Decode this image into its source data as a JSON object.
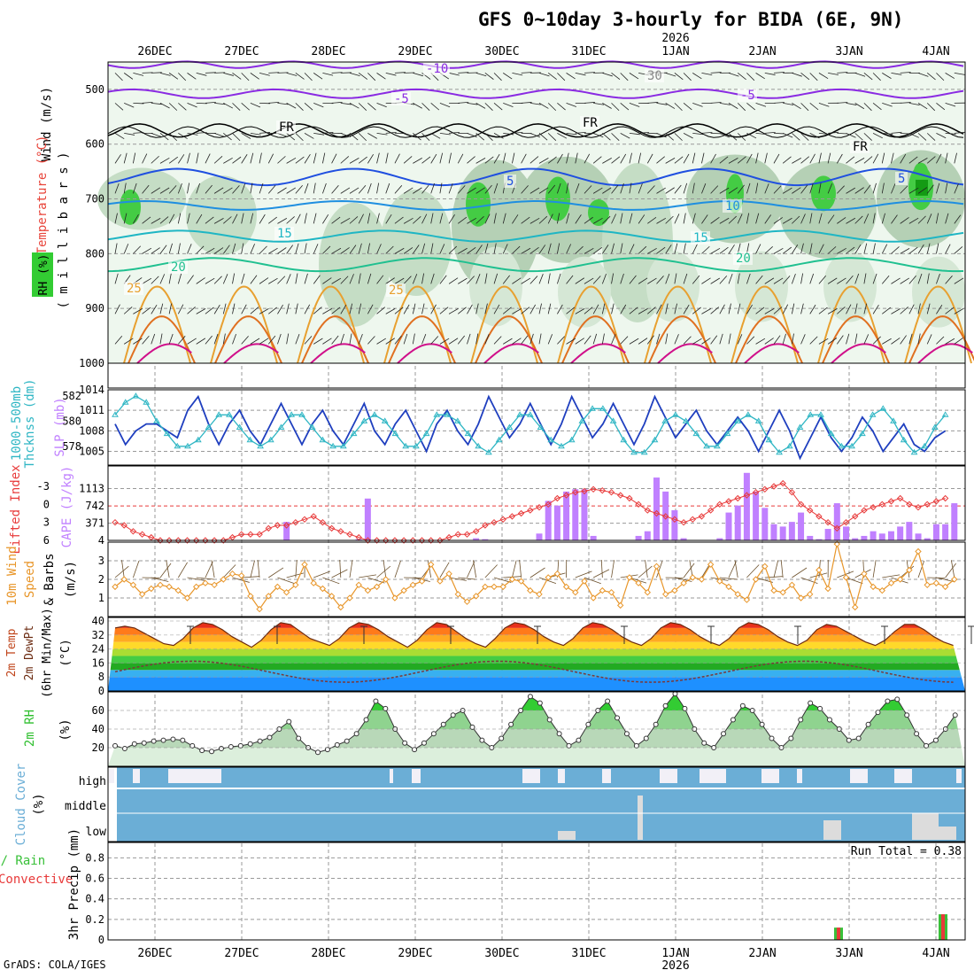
{
  "title": "GFS 0~10day 3-hourly for BIDA (6E, 9N)",
  "credit": "GrADS: COLA/IGES",
  "year_label": "2026",
  "dates": [
    "26DEC",
    "27DEC",
    "28DEC",
    "29DEC",
    "30DEC",
    "31DEC",
    "1JAN",
    "2JAN",
    "3JAN",
    "4JAN"
  ],
  "colors": {
    "rh": "#33cc33",
    "temp_c": "#e8443a",
    "wind": "#000000",
    "slp": "#1f3fbf",
    "thick": "#2fb6c4",
    "li": "#e83a3a",
    "cape": "#c080ff",
    "wind10": "#e8962a",
    "rh2m": "#2fbf2f",
    "cloud": "#6baed6",
    "precip_total": "#39c039",
    "precip_conv": "#e83a3a"
  },
  "panels": {
    "upper": {
      "ylabel_rh": "RH (%)",
      "ylabel_temp": "Temperature (°C)",
      "ylabel_wind": "Wind (m/s)",
      "ylabel_p": "( m i l l i b a r s )",
      "y_ticks": [
        "500",
        "600",
        "700",
        "800",
        "900",
        "1000"
      ],
      "contour_labels": [
        "-10",
        "-5",
        "-5",
        "FR",
        "FR",
        "FR",
        "5",
        "5",
        "10",
        "15",
        "15",
        "20",
        "20",
        "25",
        "25",
        "30"
      ]
    },
    "slp": {
      "ylabel_a": "1000-500mb",
      "ylabel_b": "Thcknss (dm)",
      "ylabel_c": "SLP (mb)",
      "left_ticks": [
        "582",
        "580",
        "578"
      ],
      "right_ticks": [
        "1014",
        "1011",
        "1008",
        "1005"
      ]
    },
    "cape": {
      "ylabel_a": "Lifted Index",
      "ylabel_b": "CAPE (J/kg)",
      "left_ticks": [
        "-3",
        "0",
        "3",
        "6"
      ],
      "right_ticks": [
        "1113",
        "742",
        "371",
        "4"
      ]
    },
    "wind10": {
      "ylabel_a": "10m Wind",
      "ylabel_b": "Speed",
      "ylabel_c": "& Barbs",
      "ylabel_d": "(m/s)",
      "y_ticks": [
        "3",
        "2",
        "1"
      ]
    },
    "temp": {
      "ylabel_a": "2m Temp",
      "ylabel_b": "2m DewPt",
      "ylabel_c": "(6hr Min/Max)",
      "ylabel_d": "(°C)",
      "y_ticks": [
        "40",
        "32",
        "24",
        "16",
        "8",
        "0"
      ]
    },
    "rh2m": {
      "ylabel_a": "2m RH",
      "ylabel_b": "(%)",
      "y_ticks": [
        "60",
        "40",
        "20"
      ]
    },
    "cloud": {
      "ylabel_a": "Cloud Cover",
      "ylabel_b": "(%)",
      "levels": [
        "high",
        "middle",
        "low"
      ]
    },
    "precip": {
      "ylabel_a": "Total / Rain",
      "ylabel_b": "Convective",
      "ylabel_c": "3hr Precip (mm)",
      "y_ticks": [
        "0.8",
        "0.6",
        "0.4",
        "0.2",
        "0"
      ],
      "run_total": "Run Total = 0.38"
    }
  },
  "chart_data": [
    {
      "type": "line",
      "title": "1000-500mb Thickness (dm) / SLP (mb)",
      "series": [
        {
          "name": "SLP (mb)",
          "axis": "right",
          "ylim": [
            1003,
            1014
          ],
          "values": [
            1009,
            1006,
            1008,
            1009,
            1009,
            1008,
            1007,
            1011,
            1013,
            1009,
            1006,
            1009,
            1011,
            1008,
            1006,
            1009,
            1012,
            1009,
            1006,
            1009,
            1011,
            1008,
            1006,
            1009,
            1012,
            1008,
            1006,
            1009,
            1011,
            1008,
            1005,
            1009,
            1011,
            1008,
            1006,
            1009,
            1013,
            1010,
            1007,
            1009,
            1012,
            1009,
            1006,
            1009,
            1013,
            1010,
            1007,
            1009,
            1012,
            1009,
            1006,
            1009,
            1013,
            1010,
            1007,
            1009,
            1011,
            1008,
            1006,
            1008,
            1010,
            1008,
            1005,
            1008,
            1011,
            1008,
            1004,
            1007,
            1010,
            1007,
            1005,
            1007,
            1010,
            1008,
            1005,
            1007,
            1009,
            1006,
            1005,
            1007,
            1008
          ]
        },
        {
          "name": "1000-500mb Thickness (dm)",
          "axis": "left",
          "ylim": [
            576.5,
            582.5
          ],
          "values": [
            580.5,
            581.5,
            582,
            581.5,
            580,
            579,
            578,
            578,
            578.5,
            579.5,
            580.5,
            580.5,
            579.5,
            578.5,
            578,
            578.5,
            579.5,
            580.5,
            580.5,
            579.5,
            578.5,
            578,
            578,
            579,
            580,
            580.5,
            580,
            579,
            578,
            578,
            579,
            580.5,
            580.5,
            580,
            579,
            578,
            577.5,
            578.5,
            579.5,
            580.5,
            580.5,
            579.5,
            578.5,
            578,
            578.5,
            580,
            581,
            581,
            580,
            578.5,
            577.5,
            577.5,
            578.5,
            580,
            580.5,
            580,
            579,
            578,
            578,
            579,
            580,
            580.5,
            580,
            578.5,
            577.5,
            578,
            579.5,
            580.5,
            580.5,
            579,
            578,
            578,
            579,
            580.5,
            581,
            580,
            578.5,
            577.5,
            578,
            579.5,
            580.5
          ]
        }
      ]
    },
    {
      "type": "bar",
      "title": "Lifted Index / CAPE (J/kg)",
      "cape_ylim": [
        4,
        1484
      ],
      "cape_values": [
        0,
        0,
        0,
        0,
        0,
        0,
        0,
        0,
        0,
        0,
        0,
        0,
        0,
        0,
        0,
        0,
        0,
        0,
        0,
        0,
        0,
        0,
        0,
        0,
        0,
        0,
        0,
        0,
        0,
        0,
        0,
        0,
        0,
        0,
        0,
        0,
        0,
        0,
        0,
        0,
        0,
        0,
        0,
        0,
        0,
        0,
        0,
        0,
        0,
        0,
        0,
        0,
        0,
        0,
        0,
        0,
        0,
        0,
        0,
        0,
        0,
        0,
        0,
        0,
        0,
        0,
        0,
        0,
        0,
        0,
        0,
        0,
        0,
        0,
        0,
        0,
        0,
        0,
        0,
        0,
        0
      ],
      "cape_bars": [
        [
          19,
          400
        ],
        [
          27,
          30
        ],
        [
          28,
          900
        ],
        [
          40,
          50
        ],
        [
          41,
          30
        ],
        [
          47,
          150
        ],
        [
          48,
          850
        ],
        [
          49,
          750
        ],
        [
          50,
          1050
        ],
        [
          51,
          1100
        ],
        [
          52,
          1100
        ],
        [
          53,
          100
        ],
        [
          58,
          100
        ],
        [
          59,
          200
        ],
        [
          60,
          1350
        ],
        [
          61,
          1050
        ],
        [
          62,
          650
        ],
        [
          63,
          50
        ],
        [
          67,
          50
        ],
        [
          68,
          600
        ],
        [
          69,
          750
        ],
        [
          70,
          1450
        ],
        [
          71,
          1050
        ],
        [
          72,
          700
        ],
        [
          73,
          350
        ],
        [
          74,
          300
        ],
        [
          75,
          400
        ],
        [
          76,
          600
        ],
        [
          77,
          100
        ],
        [
          78,
          30
        ],
        [
          79,
          250
        ],
        [
          80,
          800
        ],
        [
          81,
          300
        ],
        [
          82,
          50
        ],
        [
          83,
          100
        ],
        [
          84,
          200
        ],
        [
          85,
          150
        ],
        [
          86,
          200
        ],
        [
          87,
          300
        ],
        [
          88,
          400
        ],
        [
          89,
          150
        ],
        [
          90,
          50
        ],
        [
          91,
          350
        ],
        [
          92,
          350
        ],
        [
          93,
          800
        ]
      ],
      "li_ylim": [
        6,
        -5.5
      ],
      "li_values": [
        3,
        3.5,
        4.5,
        5,
        5.5,
        6,
        6,
        6,
        6,
        6,
        6,
        6,
        6,
        5.5,
        5,
        5,
        5,
        4,
        3.5,
        3.5,
        3,
        2.5,
        2,
        3,
        4,
        4.5,
        5,
        5.5,
        6,
        6,
        6,
        6,
        6,
        6,
        6,
        6,
        6,
        5.5,
        5,
        5,
        4.5,
        3.5,
        3,
        2.5,
        2,
        1.5,
        1,
        0.5,
        0,
        -1,
        -1.5,
        -2,
        -2.2,
        -2.5,
        -2.3,
        -2,
        -1.5,
        -1,
        0,
        1,
        1.5,
        2,
        2.5,
        3,
        2.5,
        2,
        1,
        0,
        -0.5,
        -1,
        -1.5,
        -2,
        -2.5,
        -3,
        -3.5,
        -2,
        0,
        1,
        2,
        3,
        4,
        3,
        2,
        1,
        0.5,
        0,
        -0.5,
        -1,
        0,
        0.5,
        0,
        -0.5,
        -1
      ]
    },
    {
      "type": "line",
      "title": "10m Wind Speed (m/s)",
      "ylim": [
        0,
        4
      ],
      "values": [
        1.6,
        2,
        1.7,
        1.2,
        1.5,
        1.7,
        1.6,
        1.4,
        1,
        1.6,
        1.8,
        1.7,
        2,
        2.3,
        2.2,
        1.1,
        0.4,
        1.1,
        1.6,
        1.3,
        1.7,
        2.8,
        1.8,
        1.5,
        1.1,
        0.5,
        1,
        1.7,
        1.4,
        1.6,
        2,
        1,
        1.4,
        1.7,
        1.9,
        2.8,
        1.9,
        2.3,
        1.2,
        0.8,
        1.1,
        1.6,
        1.6,
        1.6,
        2,
        1.9,
        1.4,
        1.2,
        2.1,
        2.3,
        1.6,
        1.3,
        1.9,
        1,
        1.4,
        1.3,
        0.6,
        2.1,
        1.8,
        1.3,
        2.7,
        1.2,
        1.4,
        1.8,
        2.1,
        2,
        2.8,
        1.9,
        1.6,
        1.2,
        0.9,
        2,
        2.7,
        1.4,
        1.3,
        1.7,
        1,
        1.2,
        2.5,
        1.5,
        3.9,
        2.1,
        0.5,
        2.3,
        1.6,
        1.4,
        1.8,
        2,
        2.5,
        3.5,
        1.7,
        1.8,
        1.6,
        2
      ]
    },
    {
      "type": "area",
      "title": "2m Temp / 2m DewPt (°C)",
      "ylim": [
        0,
        42
      ],
      "temp_values": [
        36,
        37,
        36,
        33,
        30,
        27,
        26,
        30,
        36,
        39,
        38,
        35,
        31,
        28,
        25,
        29,
        35,
        39,
        38,
        34,
        30,
        28,
        26,
        30,
        36,
        39,
        38,
        35,
        31,
        28,
        25,
        29,
        35,
        39,
        38,
        34,
        30,
        27,
        25,
        30,
        36,
        39,
        38,
        35,
        31,
        28,
        26,
        30,
        36,
        39,
        38,
        35,
        31,
        28,
        26,
        30,
        36,
        39,
        38,
        35,
        31,
        28,
        26,
        30,
        36,
        39,
        38,
        35,
        31,
        28,
        26,
        29,
        35,
        38,
        37,
        34,
        31,
        28,
        26,
        29,
        34,
        38,
        38,
        35,
        31,
        28,
        26
      ]
    },
    {
      "type": "area",
      "title": "2m RH (%)",
      "ylim": [
        0,
        80
      ],
      "values": [
        22,
        19,
        24,
        25,
        27,
        28,
        29,
        28,
        22,
        17,
        16,
        19,
        21,
        22,
        24,
        27,
        31,
        40,
        48,
        30,
        20,
        15,
        18,
        23,
        27,
        35,
        50,
        70,
        62,
        40,
        25,
        18,
        25,
        35,
        45,
        55,
        60,
        42,
        28,
        20,
        30,
        45,
        60,
        75,
        68,
        50,
        35,
        22,
        28,
        45,
        60,
        70,
        52,
        35,
        22,
        30,
        45,
        65,
        78,
        62,
        40,
        25,
        20,
        35,
        50,
        65,
        60,
        45,
        30,
        20,
        30,
        50,
        68,
        62,
        50,
        40,
        28,
        30,
        45,
        58,
        70,
        72,
        55,
        35,
        22,
        28,
        40,
        55
      ]
    },
    {
      "type": "bar",
      "title": "3hr Precip (mm)",
      "ylim": [
        0,
        0.95
      ],
      "bars": [
        {
          "x": "3JAN",
          "total": 0.12,
          "convective": 0.12
        },
        {
          "x": "4JAN",
          "total": 0.25,
          "convective": 0.25
        }
      ]
    }
  ]
}
